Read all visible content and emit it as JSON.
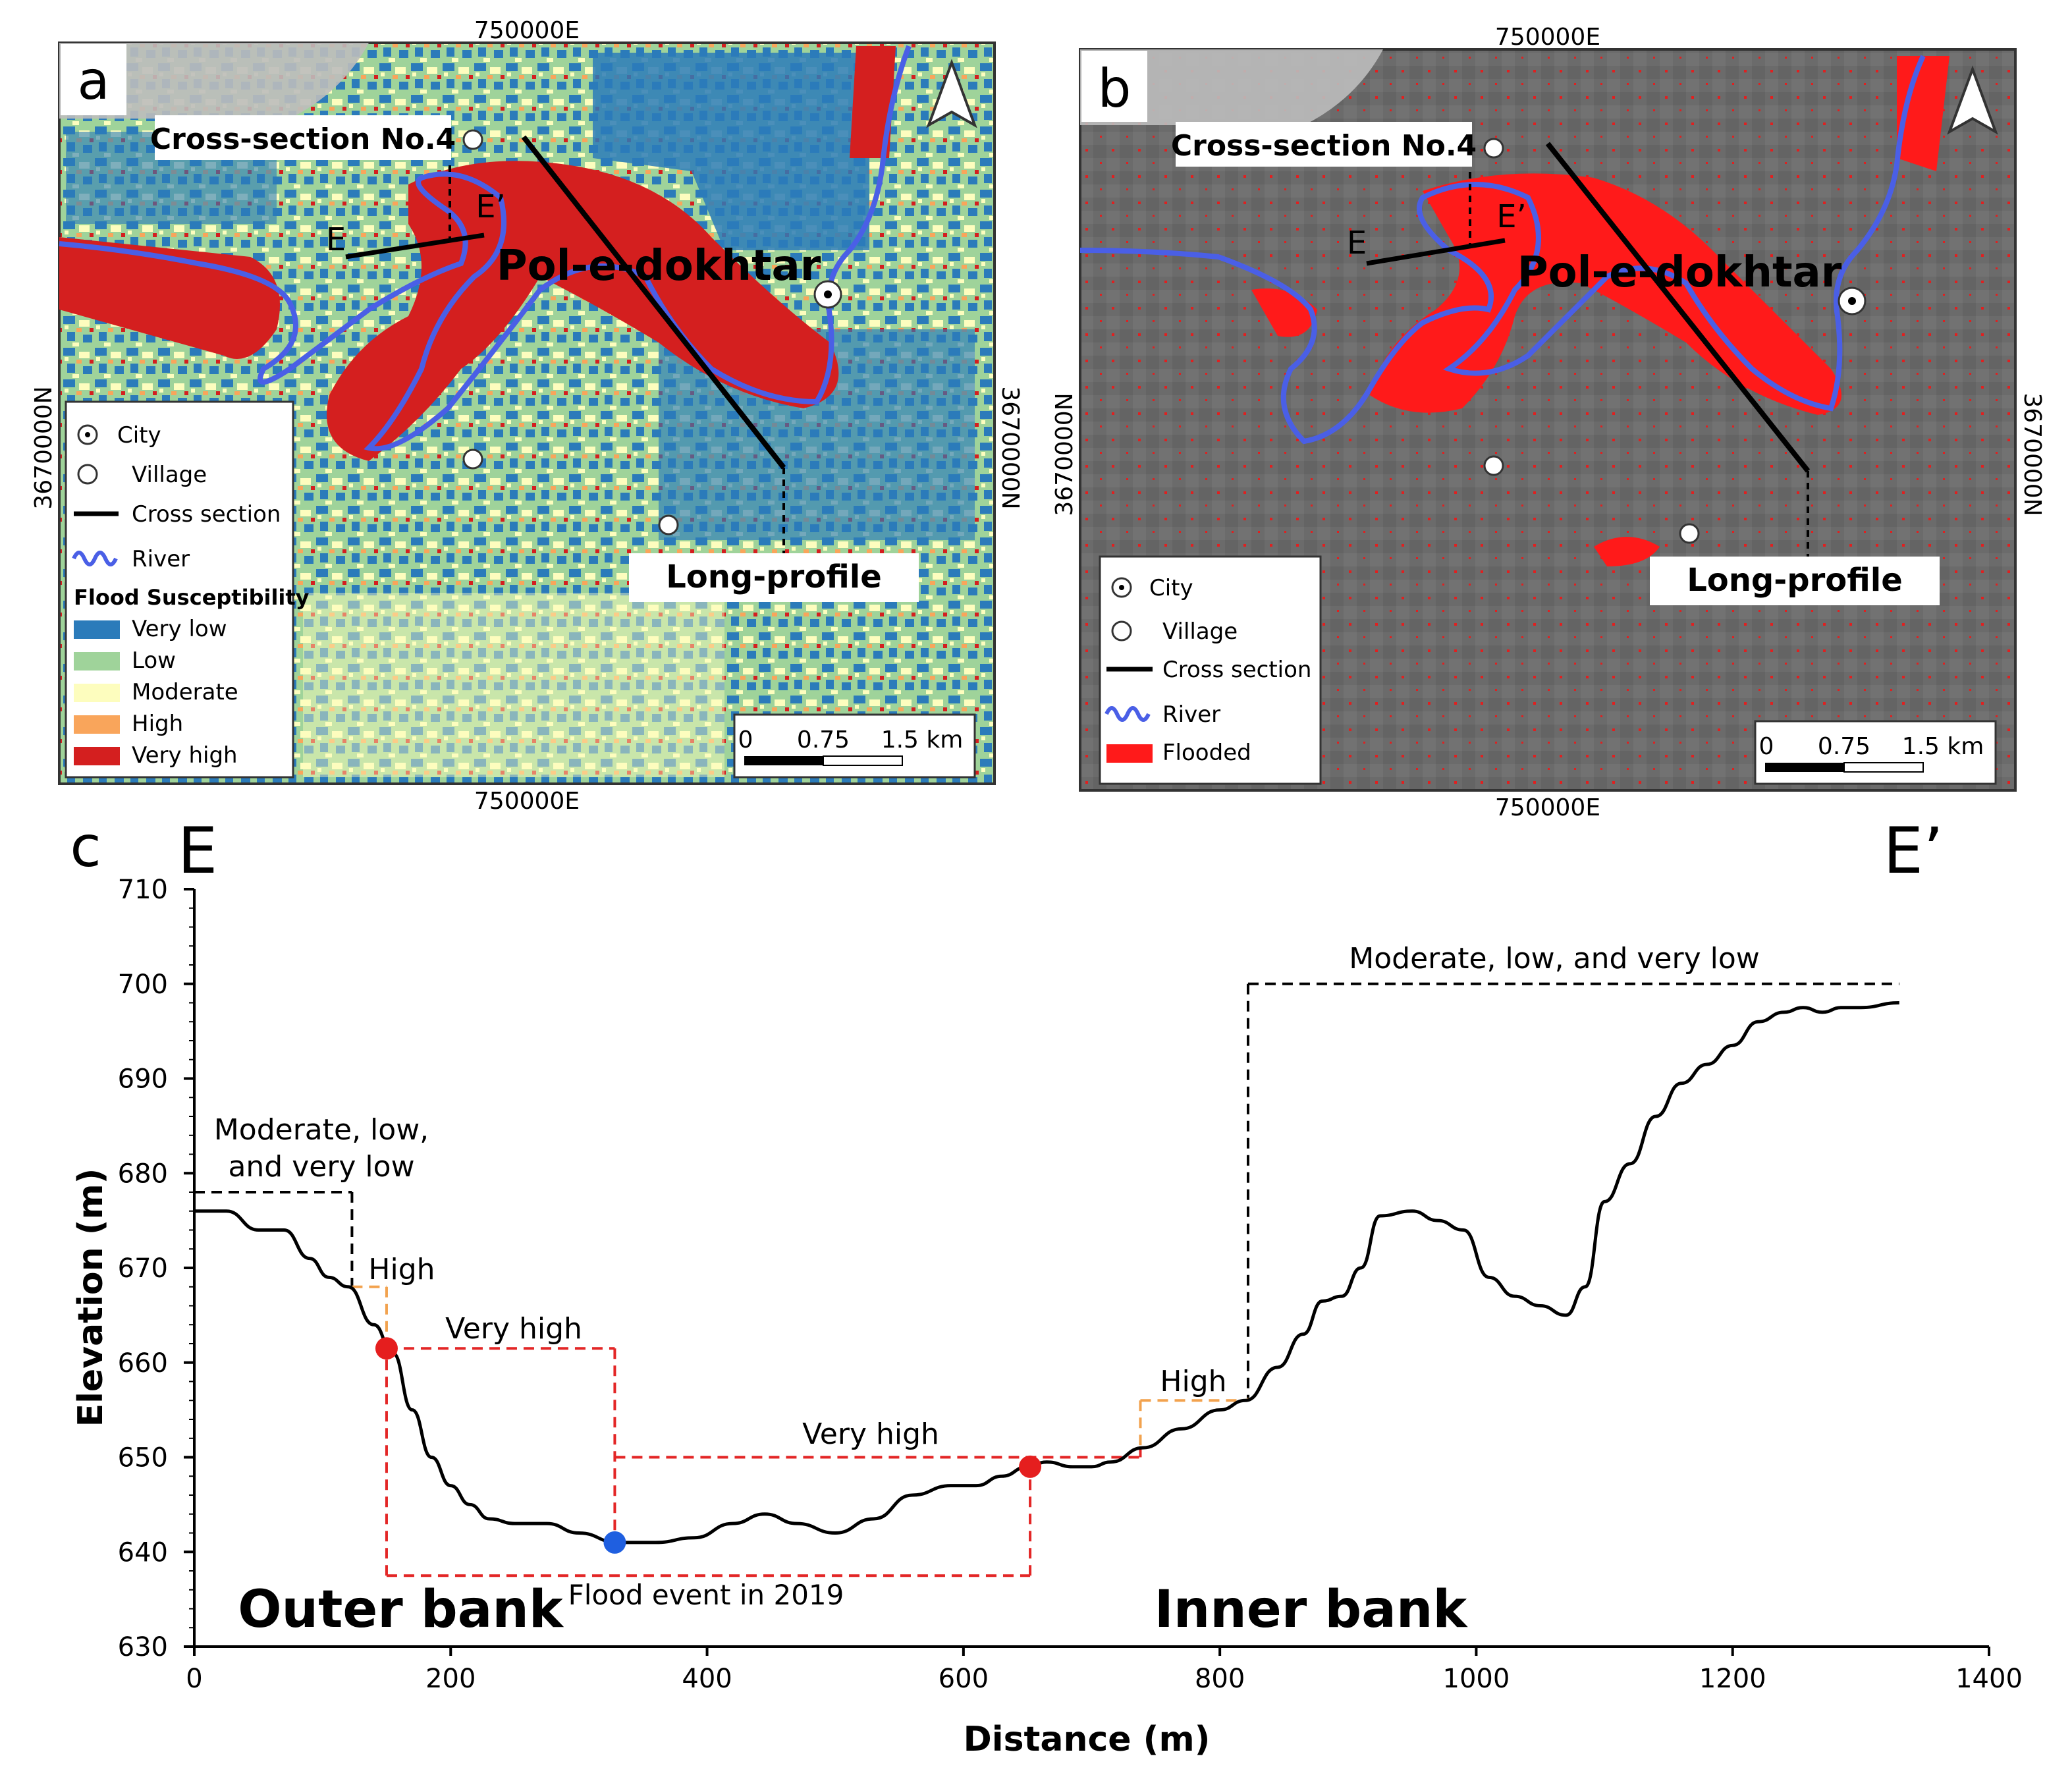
{
  "panel_a": {
    "letter": "a",
    "coord_top": "750000E",
    "coord_bottom": "750000E",
    "coord_left": "3670000N",
    "coord_right": "3670000N",
    "cross_section_label": "Cross-section No.4",
    "e_label": "E",
    "e_prime_label": "E’",
    "city_label": "Pol-e-dokhtar",
    "long_profile_label": "Long-profile",
    "legend": {
      "city": "City",
      "village": "Village",
      "cross_section": "Cross section",
      "river": "River",
      "susceptibility_title": "Flood Susceptibility",
      "classes": [
        {
          "label": "Very low",
          "color": "#2b7bba"
        },
        {
          "label": "Low",
          "color": "#9fd39a"
        },
        {
          "label": "Moderate",
          "color": "#fdfdbe"
        },
        {
          "label": "High",
          "color": "#f9a55b"
        },
        {
          "label": "Very high",
          "color": "#d41f1f"
        }
      ]
    },
    "scale": {
      "v0": "0",
      "v1": "0.75",
      "v2": "1.5 km"
    }
  },
  "panel_b": {
    "letter": "b",
    "coord_top": "750000E",
    "coord_bottom": "750000E",
    "coord_left": "3670000N",
    "coord_right": "3670000N",
    "cross_section_label": "Cross-section No.4",
    "e_label": "E",
    "e_prime_label": "E’",
    "city_label": "Pol-e-dokhtar",
    "long_profile_label": "Long-profile",
    "legend": {
      "city": "City",
      "village": "Village",
      "cross_section": "Cross section",
      "river": "River",
      "flooded": "Flooded",
      "flooded_color": "#ff1a1a"
    },
    "scale": {
      "v0": "0",
      "v1": "0.75",
      "v2": "1.5 km"
    }
  },
  "panel_c": {
    "letter": "c",
    "e_label": "E",
    "e_prime_label": "E’",
    "zone_labels": {
      "left_upper_line1": "Moderate, low,",
      "left_upper_line2": "and very low",
      "left_high": "High",
      "left_very_high": "Very high",
      "center_very_high": "Very high",
      "right_high": "High",
      "right_upper": "Moderate, low, and very low",
      "flood_event": "Flood event in 2019"
    },
    "outer_bank": "Outer bank",
    "inner_bank": "Inner bank"
  },
  "chart_data": {
    "type": "line",
    "xlabel": "Distance (m)",
    "ylabel": "Elevation (m)",
    "xlim": [
      0,
      1400
    ],
    "ylim": [
      630,
      710
    ],
    "xticks": [
      "0",
      "200",
      "400",
      "600",
      "800",
      "1000",
      "1200",
      "1400"
    ],
    "yticks": [
      "630",
      "640",
      "650",
      "660",
      "670",
      "680",
      "690",
      "700",
      "710"
    ],
    "profile": {
      "x": [
        0,
        25,
        50,
        70,
        90,
        105,
        120,
        140,
        155,
        170,
        185,
        200,
        215,
        230,
        250,
        275,
        300,
        330,
        360,
        390,
        420,
        445,
        470,
        500,
        530,
        560,
        590,
        610,
        630,
        650,
        665,
        685,
        700,
        715,
        740,
        770,
        800,
        820,
        845,
        865,
        880,
        895,
        910,
        925,
        950,
        970,
        990,
        1010,
        1030,
        1050,
        1070,
        1085,
        1100,
        1120,
        1140,
        1160,
        1180,
        1200,
        1220,
        1240,
        1255,
        1270,
        1285,
        1300,
        1330
      ],
      "y": [
        676,
        676,
        674,
        674,
        671,
        669,
        668,
        664,
        661,
        655,
        650,
        647,
        645,
        643.5,
        643,
        643,
        642,
        641,
        641,
        641.5,
        643,
        644,
        643,
        642,
        643.5,
        646,
        647,
        647,
        648,
        649,
        649.5,
        649,
        649,
        649.5,
        651,
        653,
        655,
        656,
        659.5,
        663,
        666.5,
        667,
        670,
        675.5,
        676,
        675,
        674,
        669,
        667,
        666,
        665,
        668,
        677,
        681,
        686,
        689.5,
        691.5,
        693.5,
        696,
        697,
        697.5,
        697,
        697.5,
        697.5,
        698
      ]
    },
    "points": [
      {
        "x": 150,
        "y": 661.5,
        "color": "#e51e1e"
      },
      {
        "x": 328,
        "y": 641,
        "color": "#1f5fe0"
      },
      {
        "x": 652,
        "y": 649,
        "color": "#e51e1e"
      }
    ],
    "zones": [
      {
        "name": "left-upper",
        "color": "#000000",
        "x0": 0,
        "x1": 123,
        "y": 678
      },
      {
        "name": "left-high",
        "color": "#f2a24e",
        "x0": 123,
        "x1": 150,
        "y": 668
      },
      {
        "name": "left-very-high",
        "color": "#e32626",
        "x0": 150,
        "x1": 328,
        "y": 661.5
      },
      {
        "name": "center-very-high",
        "color": "#e32626",
        "x0": 328,
        "x1": 738,
        "y": 650
      },
      {
        "name": "right-high",
        "color": "#f2a24e",
        "x0": 738,
        "x1": 822,
        "y": 656
      },
      {
        "name": "right-upper",
        "color": "#000000",
        "x0": 822,
        "x1": 1330,
        "y": 700
      }
    ],
    "flood_event": {
      "x0": 150,
      "x1": 652,
      "y": 637.5
    }
  }
}
